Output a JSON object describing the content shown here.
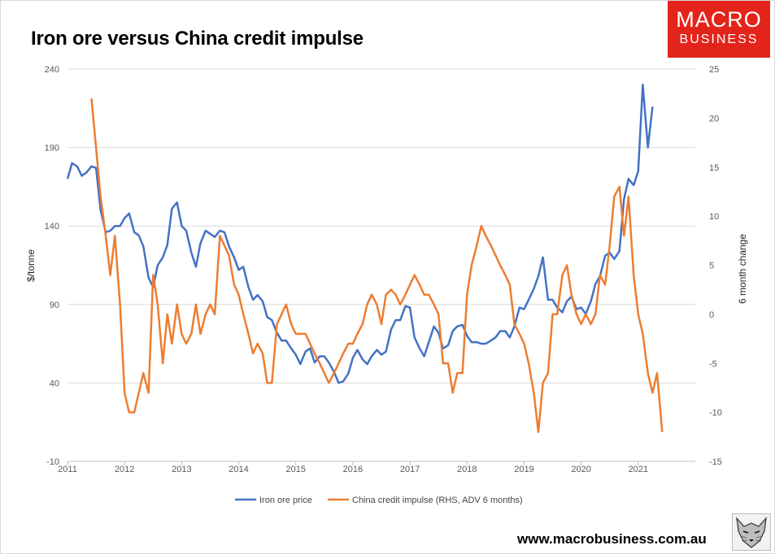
{
  "title": "Iron ore versus China credit impulse",
  "logo": {
    "line1": "MACRO",
    "line2": "BUSINESS",
    "color": "#e3241b"
  },
  "website": "www.macrobusiness.com.au",
  "mascot_icon": "wolf-icon",
  "chart_data": {
    "type": "line",
    "x_ticks": [
      "2011",
      "2012",
      "2013",
      "2014",
      "2015",
      "2016",
      "2017",
      "2018",
      "2019",
      "2020",
      "2021"
    ],
    "x_range": [
      2011.0,
      2022.0
    ],
    "y_left": {
      "label": "$/tonne",
      "range": [
        -10,
        240
      ],
      "ticks": [
        240,
        190,
        140,
        90,
        40,
        -10
      ]
    },
    "y_right": {
      "label": "6 month change",
      "range": [
        -15,
        25
      ],
      "ticks": [
        25,
        20,
        15,
        10,
        5,
        0,
        -5,
        -10,
        -15
      ]
    },
    "grid": "horizontal",
    "legend_position": "bottom",
    "series": [
      {
        "name": "Iron ore price",
        "axis": "left",
        "color": "#4472c4",
        "points": [
          [
            2011.0,
            170
          ],
          [
            2011.08,
            180
          ],
          [
            2011.17,
            178
          ],
          [
            2011.25,
            172
          ],
          [
            2011.33,
            174
          ],
          [
            2011.42,
            178
          ],
          [
            2011.5,
            177
          ],
          [
            2011.58,
            150
          ],
          [
            2011.67,
            136
          ],
          [
            2011.75,
            137
          ],
          [
            2011.83,
            140
          ],
          [
            2011.92,
            140
          ],
          [
            2012.0,
            145
          ],
          [
            2012.08,
            148
          ],
          [
            2012.17,
            136
          ],
          [
            2012.25,
            134
          ],
          [
            2012.33,
            127
          ],
          [
            2012.42,
            107
          ],
          [
            2012.5,
            101
          ],
          [
            2012.58,
            115
          ],
          [
            2012.67,
            120
          ],
          [
            2012.75,
            128
          ],
          [
            2012.83,
            151
          ],
          [
            2012.92,
            155
          ],
          [
            2013.0,
            140
          ],
          [
            2013.08,
            137
          ],
          [
            2013.17,
            123
          ],
          [
            2013.25,
            114
          ],
          [
            2013.33,
            129
          ],
          [
            2013.42,
            137
          ],
          [
            2013.5,
            135
          ],
          [
            2013.58,
            133
          ],
          [
            2013.67,
            137
          ],
          [
            2013.75,
            136
          ],
          [
            2013.83,
            127
          ],
          [
            2013.92,
            120
          ],
          [
            2014.0,
            112
          ],
          [
            2014.08,
            114
          ],
          [
            2014.17,
            101
          ],
          [
            2014.25,
            93
          ],
          [
            2014.33,
            96
          ],
          [
            2014.42,
            92
          ],
          [
            2014.5,
            82
          ],
          [
            2014.58,
            80
          ],
          [
            2014.67,
            72
          ],
          [
            2014.75,
            67
          ],
          [
            2014.83,
            67
          ],
          [
            2014.92,
            62
          ],
          [
            2015.0,
            58
          ],
          [
            2015.08,
            52
          ],
          [
            2015.17,
            60
          ],
          [
            2015.25,
            62
          ],
          [
            2015.33,
            53
          ],
          [
            2015.42,
            57
          ],
          [
            2015.5,
            57
          ],
          [
            2015.58,
            53
          ],
          [
            2015.67,
            47
          ],
          [
            2015.75,
            40
          ],
          [
            2015.83,
            41
          ],
          [
            2015.92,
            46
          ],
          [
            2016.0,
            56
          ],
          [
            2016.08,
            61
          ],
          [
            2016.17,
            55
          ],
          [
            2016.25,
            52
          ],
          [
            2016.33,
            57
          ],
          [
            2016.42,
            61
          ],
          [
            2016.5,
            58
          ],
          [
            2016.58,
            60
          ],
          [
            2016.67,
            74
          ],
          [
            2016.75,
            80
          ],
          [
            2016.83,
            80
          ],
          [
            2016.92,
            89
          ],
          [
            2017.0,
            88
          ],
          [
            2017.08,
            69
          ],
          [
            2017.17,
            62
          ],
          [
            2017.25,
            57
          ],
          [
            2017.33,
            66
          ],
          [
            2017.42,
            76
          ],
          [
            2017.5,
            72
          ],
          [
            2017.58,
            62
          ],
          [
            2017.67,
            64
          ],
          [
            2017.75,
            73
          ],
          [
            2017.83,
            76
          ],
          [
            2017.92,
            77
          ],
          [
            2018.0,
            70
          ],
          [
            2018.08,
            66
          ],
          [
            2018.17,
            66
          ],
          [
            2018.25,
            65
          ],
          [
            2018.33,
            65
          ],
          [
            2018.42,
            67
          ],
          [
            2018.5,
            69
          ],
          [
            2018.58,
            73
          ],
          [
            2018.67,
            73
          ],
          [
            2018.75,
            69
          ],
          [
            2018.83,
            76
          ],
          [
            2018.92,
            88
          ],
          [
            2019.0,
            87
          ],
          [
            2019.08,
            93
          ],
          [
            2019.17,
            100
          ],
          [
            2019.25,
            108
          ],
          [
            2019.33,
            120
          ],
          [
            2019.42,
            93
          ],
          [
            2019.5,
            93
          ],
          [
            2019.58,
            88
          ],
          [
            2019.67,
            85
          ],
          [
            2019.75,
            92
          ],
          [
            2019.83,
            95
          ],
          [
            2019.92,
            87
          ],
          [
            2020.0,
            88
          ],
          [
            2020.08,
            84
          ],
          [
            2020.17,
            92
          ],
          [
            2020.25,
            103
          ],
          [
            2020.33,
            108
          ],
          [
            2020.42,
            121
          ],
          [
            2020.5,
            123
          ],
          [
            2020.58,
            119
          ],
          [
            2020.67,
            124
          ],
          [
            2020.75,
            157
          ],
          [
            2020.83,
            170
          ],
          [
            2020.92,
            166
          ],
          [
            2021.0,
            175
          ],
          [
            2021.08,
            230
          ],
          [
            2021.17,
            190
          ],
          [
            2021.25,
            216
          ]
        ]
      },
      {
        "name": "China credit impulse (RHS, ADV 6 months)",
        "axis": "right",
        "color": "#ed7d31",
        "points": [
          [
            2011.42,
            22
          ],
          [
            2011.5,
            17
          ],
          [
            2011.58,
            12
          ],
          [
            2011.67,
            8
          ],
          [
            2011.75,
            4
          ],
          [
            2011.83,
            8
          ],
          [
            2011.92,
            1
          ],
          [
            2012.0,
            -8
          ],
          [
            2012.08,
            -10
          ],
          [
            2012.17,
            -10
          ],
          [
            2012.25,
            -8
          ],
          [
            2012.33,
            -6
          ],
          [
            2012.42,
            -8
          ],
          [
            2012.5,
            4
          ],
          [
            2012.58,
            1
          ],
          [
            2012.67,
            -5
          ],
          [
            2012.75,
            0
          ],
          [
            2012.83,
            -3
          ],
          [
            2012.92,
            1
          ],
          [
            2013.0,
            -2
          ],
          [
            2013.08,
            -3
          ],
          [
            2013.17,
            -2
          ],
          [
            2013.25,
            1
          ],
          [
            2013.33,
            -2
          ],
          [
            2013.42,
            0
          ],
          [
            2013.5,
            1
          ],
          [
            2013.58,
            0
          ],
          [
            2013.67,
            8
          ],
          [
            2013.75,
            7
          ],
          [
            2013.83,
            6
          ],
          [
            2013.92,
            3
          ],
          [
            2014.0,
            2
          ],
          [
            2014.08,
            0
          ],
          [
            2014.17,
            -2
          ],
          [
            2014.25,
            -4
          ],
          [
            2014.33,
            -3
          ],
          [
            2014.42,
            -4
          ],
          [
            2014.5,
            -7
          ],
          [
            2014.58,
            -7
          ],
          [
            2014.67,
            -1
          ],
          [
            2014.75,
            0
          ],
          [
            2014.83,
            1
          ],
          [
            2014.92,
            -1
          ],
          [
            2015.0,
            -2
          ],
          [
            2015.08,
            -2
          ],
          [
            2015.17,
            -2
          ],
          [
            2015.25,
            -3
          ],
          [
            2015.33,
            -4
          ],
          [
            2015.42,
            -5
          ],
          [
            2015.5,
            -6
          ],
          [
            2015.58,
            -7
          ],
          [
            2015.67,
            -6
          ],
          [
            2015.75,
            -5
          ],
          [
            2015.83,
            -4
          ],
          [
            2015.92,
            -3
          ],
          [
            2016.0,
            -3
          ],
          [
            2016.08,
            -2
          ],
          [
            2016.17,
            -1
          ],
          [
            2016.25,
            1
          ],
          [
            2016.33,
            2
          ],
          [
            2016.42,
            1
          ],
          [
            2016.5,
            -1
          ],
          [
            2016.58,
            2
          ],
          [
            2016.67,
            2.5
          ],
          [
            2016.75,
            2
          ],
          [
            2016.83,
            1
          ],
          [
            2016.92,
            2
          ],
          [
            2017.0,
            3
          ],
          [
            2017.08,
            4
          ],
          [
            2017.17,
            3
          ],
          [
            2017.25,
            2
          ],
          [
            2017.33,
            2
          ],
          [
            2017.42,
            1
          ],
          [
            2017.5,
            0
          ],
          [
            2017.58,
            -5
          ],
          [
            2017.67,
            -5
          ],
          [
            2017.75,
            -8
          ],
          [
            2017.83,
            -6
          ],
          [
            2017.92,
            -6
          ],
          [
            2018.0,
            2
          ],
          [
            2018.08,
            5
          ],
          [
            2018.17,
            7
          ],
          [
            2018.25,
            9
          ],
          [
            2018.33,
            8
          ],
          [
            2018.42,
            7
          ],
          [
            2018.5,
            6
          ],
          [
            2018.58,
            5
          ],
          [
            2018.67,
            4
          ],
          [
            2018.75,
            3
          ],
          [
            2018.83,
            -1
          ],
          [
            2018.92,
            -2
          ],
          [
            2019.0,
            -3
          ],
          [
            2019.08,
            -5
          ],
          [
            2019.17,
            -8
          ],
          [
            2019.25,
            -12
          ],
          [
            2019.33,
            -7
          ],
          [
            2019.42,
            -6
          ],
          [
            2019.5,
            0
          ],
          [
            2019.58,
            0
          ],
          [
            2019.67,
            4
          ],
          [
            2019.75,
            5
          ],
          [
            2019.83,
            2
          ],
          [
            2019.92,
            0
          ],
          [
            2020.0,
            -1
          ],
          [
            2020.08,
            0
          ],
          [
            2020.17,
            -1
          ],
          [
            2020.25,
            0
          ],
          [
            2020.33,
            4
          ],
          [
            2020.42,
            3
          ],
          [
            2020.5,
            7
          ],
          [
            2020.58,
            12
          ],
          [
            2020.67,
            13
          ],
          [
            2020.75,
            8
          ],
          [
            2020.83,
            12
          ],
          [
            2020.92,
            4
          ],
          [
            2021.0,
            0
          ],
          [
            2021.08,
            -2
          ],
          [
            2021.17,
            -6
          ],
          [
            2021.25,
            -8
          ],
          [
            2021.33,
            -6
          ],
          [
            2021.42,
            -12
          ]
        ]
      }
    ]
  }
}
